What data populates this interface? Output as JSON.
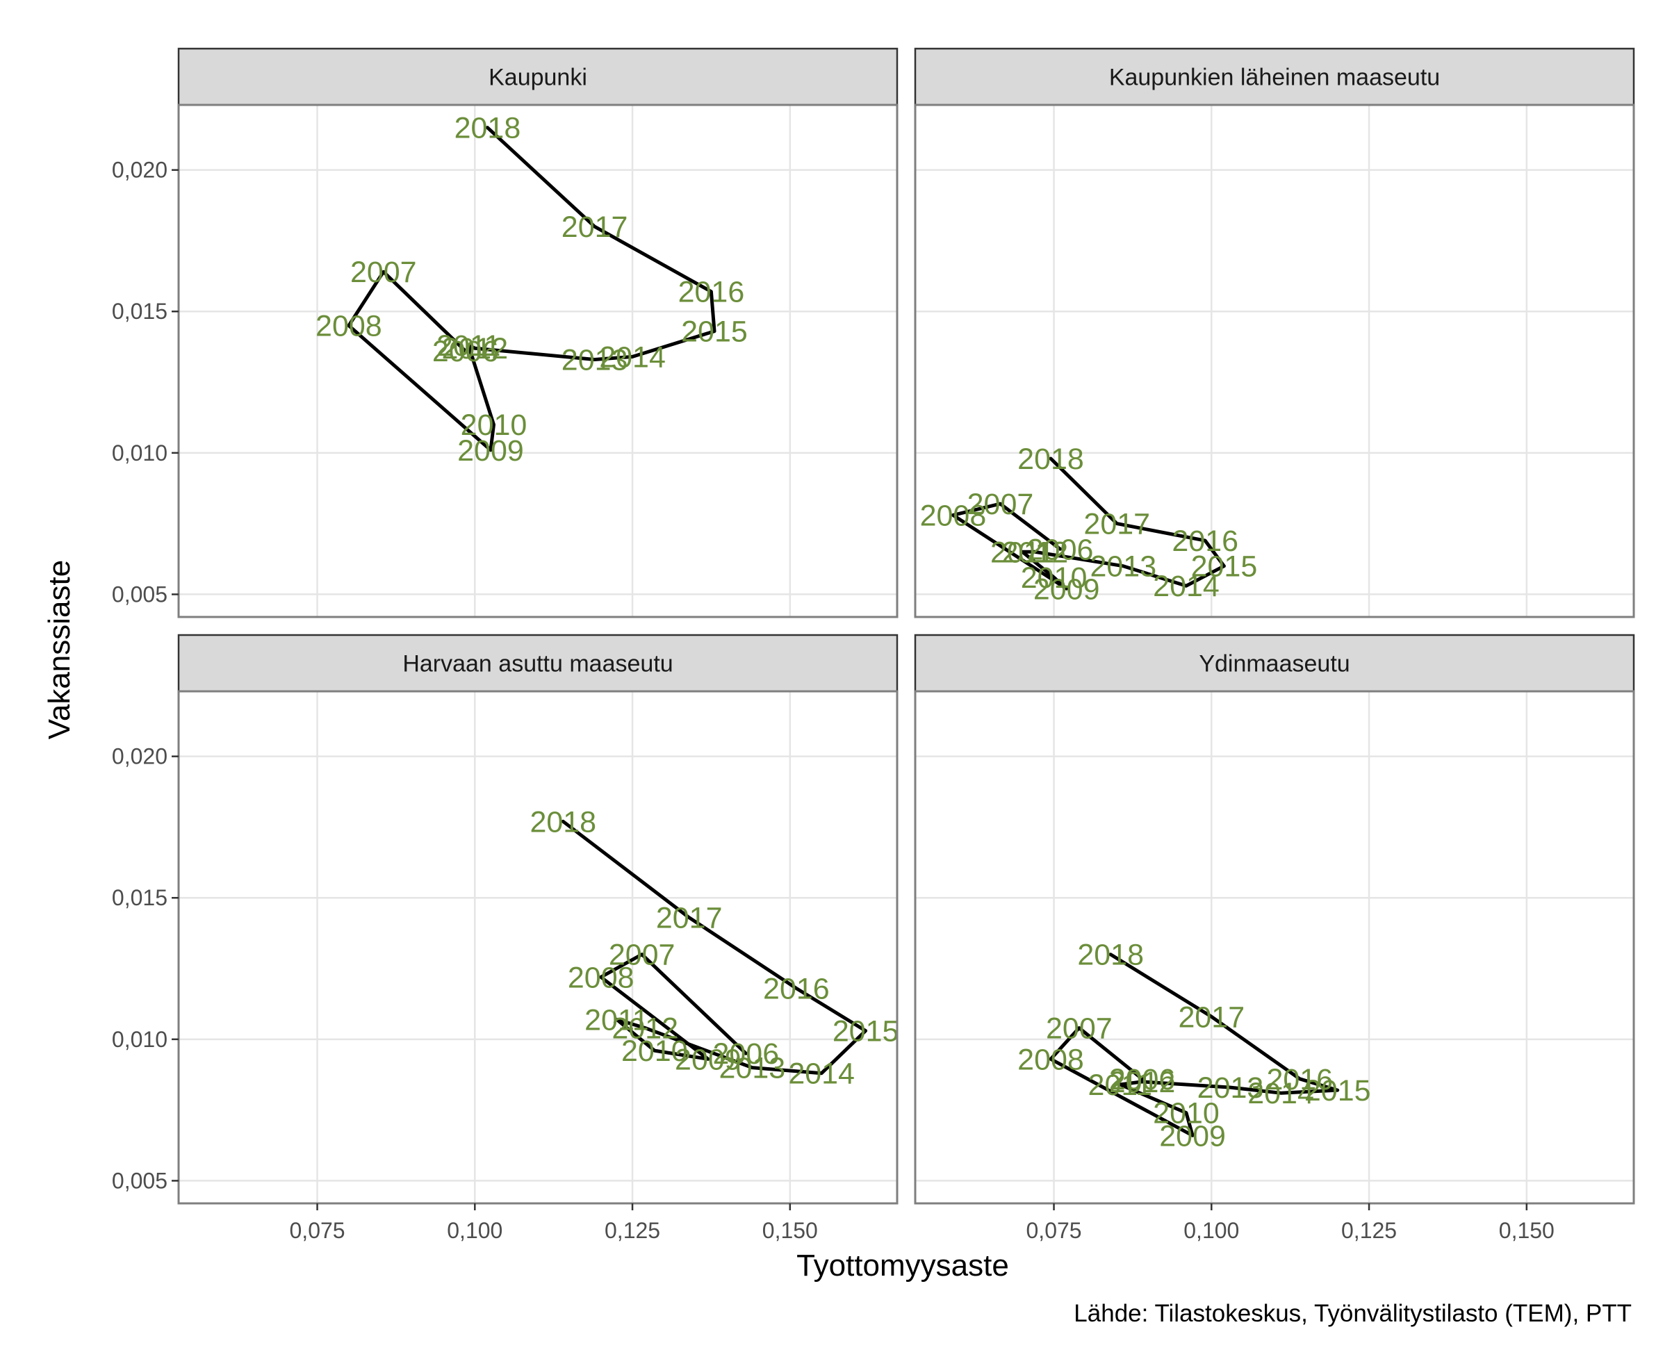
{
  "chart_data": {
    "type": "line",
    "xlabel": "Tyottomyysaste",
    "ylabel": "Vakanssiaste",
    "caption": "Lähde: Tilastokeskus, Työnvälitystilasto (TEM), PTT",
    "xlim": [
      0.053,
      0.167
    ],
    "ylim": [
      0.0042,
      0.0223
    ],
    "x_ticks": [
      0.075,
      0.1,
      0.125,
      0.15
    ],
    "x_tick_labels": [
      "0,075",
      "0,100",
      "0,125",
      "0,150"
    ],
    "y_ticks": [
      0.005,
      0.01,
      0.015,
      0.02
    ],
    "y_tick_labels": [
      "0,005",
      "0,010",
      "0,015",
      "0,020"
    ],
    "grid": true,
    "colors": {
      "line": "#000000",
      "label": "#6b8e3a",
      "strip_fill": "#d9d9d9",
      "panel_border": "#7f7f7f",
      "grid": "#e5e5e5"
    },
    "panels": [
      {
        "title": "Kaupunki",
        "points": [
          {
            "year": "2006",
            "x": 0.0985,
            "y": 0.0136
          },
          {
            "year": "2007",
            "x": 0.0855,
            "y": 0.0164
          },
          {
            "year": "2008",
            "x": 0.08,
            "y": 0.0145
          },
          {
            "year": "2009",
            "x": 0.1025,
            "y": 0.0101
          },
          {
            "year": "2010",
            "x": 0.103,
            "y": 0.011
          },
          {
            "year": "2011",
            "x": 0.099,
            "y": 0.0138
          },
          {
            "year": "2012",
            "x": 0.1,
            "y": 0.0137
          },
          {
            "year": "2013",
            "x": 0.119,
            "y": 0.0133
          },
          {
            "year": "2014",
            "x": 0.125,
            "y": 0.0134
          },
          {
            "year": "2015",
            "x": 0.138,
            "y": 0.0143
          },
          {
            "year": "2016",
            "x": 0.1375,
            "y": 0.0157
          },
          {
            "year": "2017",
            "x": 0.119,
            "y": 0.018
          },
          {
            "year": "2018",
            "x": 0.102,
            "y": 0.0215
          }
        ]
      },
      {
        "title": "Kaupunkien läheinen maaseutu",
        "points": [
          {
            "year": "2006",
            "x": 0.076,
            "y": 0.0066
          },
          {
            "year": "2007",
            "x": 0.0665,
            "y": 0.0082
          },
          {
            "year": "2008",
            "x": 0.059,
            "y": 0.0078
          },
          {
            "year": "2009",
            "x": 0.077,
            "y": 0.0052
          },
          {
            "year": "2010",
            "x": 0.075,
            "y": 0.0056
          },
          {
            "year": "2011",
            "x": 0.07,
            "y": 0.0065
          },
          {
            "year": "2012",
            "x": 0.072,
            "y": 0.0065
          },
          {
            "year": "2013",
            "x": 0.086,
            "y": 0.006
          },
          {
            "year": "2014",
            "x": 0.096,
            "y": 0.0053
          },
          {
            "year": "2015",
            "x": 0.102,
            "y": 0.006
          },
          {
            "year": "2016",
            "x": 0.099,
            "y": 0.0069
          },
          {
            "year": "2017",
            "x": 0.085,
            "y": 0.0075
          },
          {
            "year": "2018",
            "x": 0.0745,
            "y": 0.0098
          }
        ]
      },
      {
        "title": "Harvaan asuttu maaseutu",
        "points": [
          {
            "year": "2006",
            "x": 0.143,
            "y": 0.0095
          },
          {
            "year": "2007",
            "x": 0.1265,
            "y": 0.013
          },
          {
            "year": "2008",
            "x": 0.12,
            "y": 0.0122
          },
          {
            "year": "2009",
            "x": 0.137,
            "y": 0.0093
          },
          {
            "year": "2010",
            "x": 0.1285,
            "y": 0.0096
          },
          {
            "year": "2011",
            "x": 0.1225,
            "y": 0.0107
          },
          {
            "year": "2012",
            "x": 0.127,
            "y": 0.0104
          },
          {
            "year": "2013",
            "x": 0.144,
            "y": 0.009
          },
          {
            "year": "2014",
            "x": 0.155,
            "y": 0.0088
          },
          {
            "year": "2015",
            "x": 0.162,
            "y": 0.0103
          },
          {
            "year": "2016",
            "x": 0.151,
            "y": 0.0118
          },
          {
            "year": "2017",
            "x": 0.134,
            "y": 0.0143
          },
          {
            "year": "2018",
            "x": 0.114,
            "y": 0.0177
          }
        ]
      },
      {
        "title": "Ydinmaaseutu",
        "points": [
          {
            "year": "2006",
            "x": 0.089,
            "y": 0.0086
          },
          {
            "year": "2007",
            "x": 0.079,
            "y": 0.0104
          },
          {
            "year": "2008",
            "x": 0.0745,
            "y": 0.0093
          },
          {
            "year": "2009",
            "x": 0.097,
            "y": 0.0066
          },
          {
            "year": "2010",
            "x": 0.096,
            "y": 0.0074
          },
          {
            "year": "2011",
            "x": 0.0855,
            "y": 0.0084
          },
          {
            "year": "2012",
            "x": 0.089,
            "y": 0.0085
          },
          {
            "year": "2013",
            "x": 0.103,
            "y": 0.0083
          },
          {
            "year": "2014",
            "x": 0.111,
            "y": 0.0081
          },
          {
            "year": "2015",
            "x": 0.12,
            "y": 0.0082
          },
          {
            "year": "2016",
            "x": 0.114,
            "y": 0.0086
          },
          {
            "year": "2017",
            "x": 0.1,
            "y": 0.0108
          },
          {
            "year": "2018",
            "x": 0.084,
            "y": 0.013
          }
        ]
      }
    ]
  }
}
